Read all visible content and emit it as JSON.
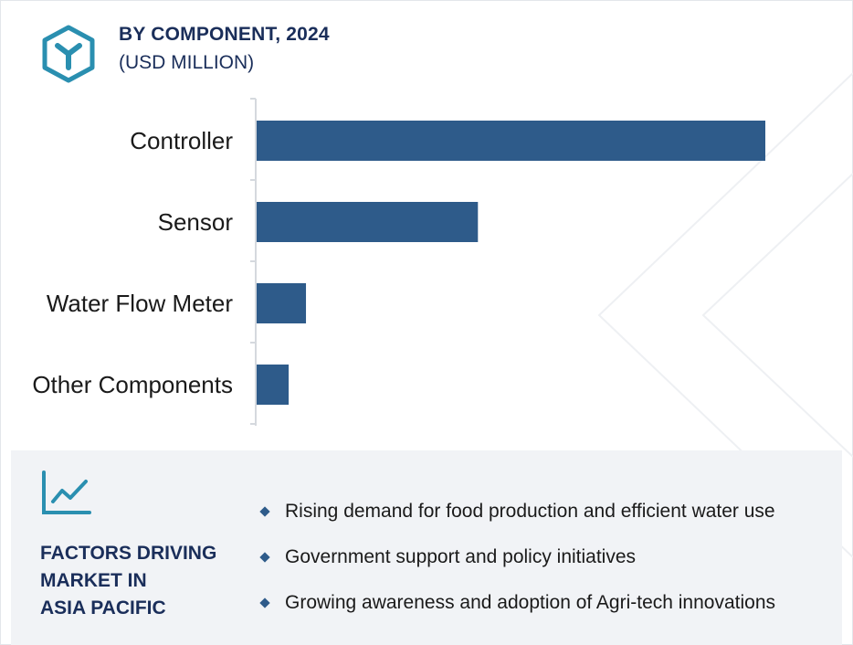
{
  "header": {
    "title": "BY COMPONENT, 2024",
    "subtitle": "(USD MILLION)",
    "logo_icon": "hexagon-y-logo-icon"
  },
  "colors": {
    "bar": "#2e5b8a",
    "title": "#1a2e5a",
    "accent_teal": "#2a8fb0",
    "panel_bg": "#f1f3f6"
  },
  "chart_data": {
    "type": "bar",
    "orientation": "horizontal",
    "title": "BY COMPONENT, 2024",
    "subtitle": "(USD MILLION)",
    "categories": [
      "Controller",
      "Sensor",
      "Water Flow Meter",
      "Other Components"
    ],
    "values": [
      100,
      43.5,
      9.7,
      6.3
    ],
    "xlim": [
      0,
      100
    ],
    "axis_values_shown": false,
    "grid": false,
    "legend": "none"
  },
  "factors": {
    "icon": "trend-line-chart-icon",
    "title_lines": [
      "FACTORS DRIVING",
      "MARKET IN",
      "ASIA PACIFIC"
    ],
    "items": [
      "Rising demand for food production and efficient water use",
      "Government support and policy initiatives",
      "Growing awareness and adoption of Agri-tech innovations"
    ]
  }
}
